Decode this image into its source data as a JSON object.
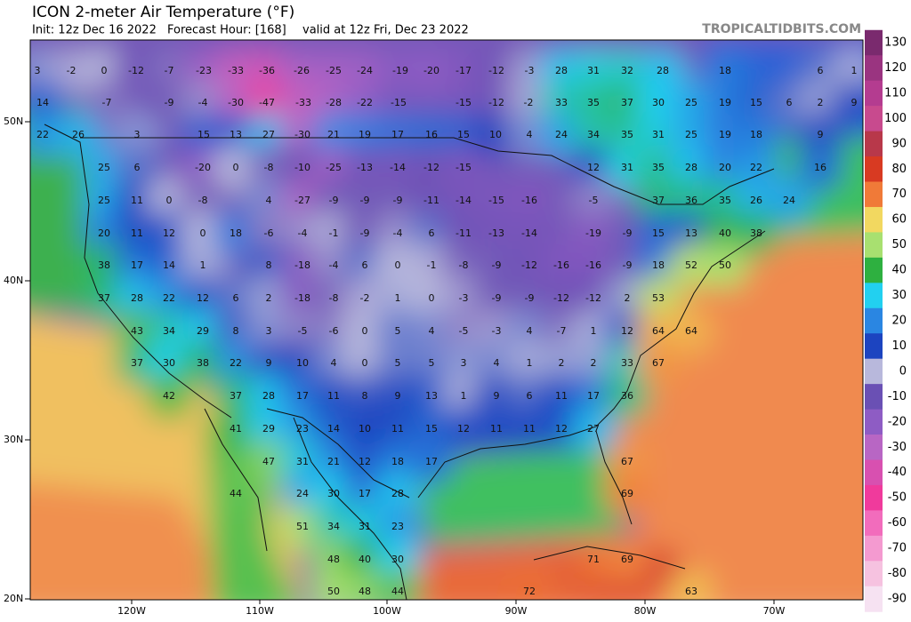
{
  "header": {
    "title": "ICON 2-meter Air Temperature (°F)",
    "init": "Init: 12z Dec 16 2022",
    "forecast_hour": "Forecast Hour: [168]",
    "valid": "valid at 12z Fri, Dec 23 2022",
    "watermark": "TROPICALTIDBITS.COM"
  },
  "colorbar": {
    "ticks": [
      130,
      120,
      110,
      100,
      90,
      80,
      70,
      60,
      50,
      40,
      30,
      20,
      10,
      0,
      -10,
      -20,
      -30,
      -40,
      -50,
      -60,
      -70,
      -80,
      -90
    ],
    "colors": [
      "#7a2a6e",
      "#9a3480",
      "#b43c90",
      "#c84a8e",
      "#b8384a",
      "#d83a22",
      "#f07a38",
      "#f2d860",
      "#a8e070",
      "#2eb040",
      "#22d0f0",
      "#2a86e2",
      "#1c44c0",
      "#b8b8dc",
      "#6a50b4",
      "#8e5cc4",
      "#b866c4",
      "#d850b0",
      "#f03a9c",
      "#f26cbc",
      "#f49ad0",
      "#f6c2e0",
      "#f6e2f2"
    ]
  },
  "lat_labels": [
    "50N",
    "40N",
    "30N",
    "20N"
  ],
  "lon_labels": [
    "120W",
    "110W",
    "100W",
    "90W",
    "80W",
    "70W"
  ],
  "stations": [
    3,
    -2,
    0,
    -12,
    -7,
    -23,
    -33,
    -36,
    -26,
    -25,
    -24,
    -19,
    -20,
    -17,
    -12,
    -3,
    28,
    31,
    32,
    28,
    18,
    6,
    1,
    14,
    -7,
    -9,
    -4,
    -30,
    -47,
    -33,
    -28,
    -22,
    -15,
    -15,
    -12,
    -2,
    33,
    35,
    37,
    30,
    25,
    19,
    15,
    6,
    2,
    9,
    22,
    26,
    3,
    15,
    13,
    27,
    -30,
    21,
    19,
    17,
    16,
    15,
    10,
    4,
    24,
    34,
    35,
    31,
    25,
    19,
    18,
    9,
    25,
    6,
    -20,
    0,
    -8,
    -10,
    -25,
    -13,
    -14,
    -12,
    -15,
    12,
    31,
    35,
    28,
    20,
    22,
    16,
    25,
    11,
    0,
    -8,
    4,
    -27,
    -9,
    -9,
    -9,
    -11,
    -14,
    -15,
    -16,
    -5,
    37,
    36,
    35,
    26,
    24,
    20,
    11,
    12,
    0,
    18,
    -6,
    -4,
    -1,
    -9,
    -4,
    6,
    -11,
    -13,
    -14,
    -19,
    -9,
    15,
    13,
    40,
    38,
    38,
    17,
    14,
    1,
    8,
    -18,
    -4,
    6,
    0,
    -1,
    -8,
    -9,
    -12,
    -16,
    -16,
    -9,
    18,
    52,
    50,
    37,
    28,
    22,
    12,
    6,
    2,
    -18,
    -8,
    -2,
    1,
    0,
    -3,
    -9,
    -9,
    -12,
    -12,
    2,
    53,
    43,
    34,
    29,
    8,
    3,
    -5,
    -6,
    0,
    5,
    4,
    -5,
    -3,
    4,
    -7,
    1,
    12,
    64,
    64,
    37,
    30,
    38,
    22,
    9,
    10,
    4,
    0,
    5,
    5,
    3,
    4,
    1,
    2,
    2,
    33,
    67,
    42,
    37,
    28,
    17,
    11,
    8,
    9,
    13,
    1,
    9,
    6,
    11,
    17,
    36,
    41,
    29,
    23,
    14,
    10,
    11,
    15,
    12,
    11,
    11,
    12,
    27,
    47,
    31,
    21,
    12,
    18,
    17,
    67,
    44,
    24,
    30,
    17,
    28,
    69,
    51,
    34,
    31,
    23,
    48,
    40,
    30,
    71,
    69,
    50,
    48,
    44,
    72,
    63
  ]
}
